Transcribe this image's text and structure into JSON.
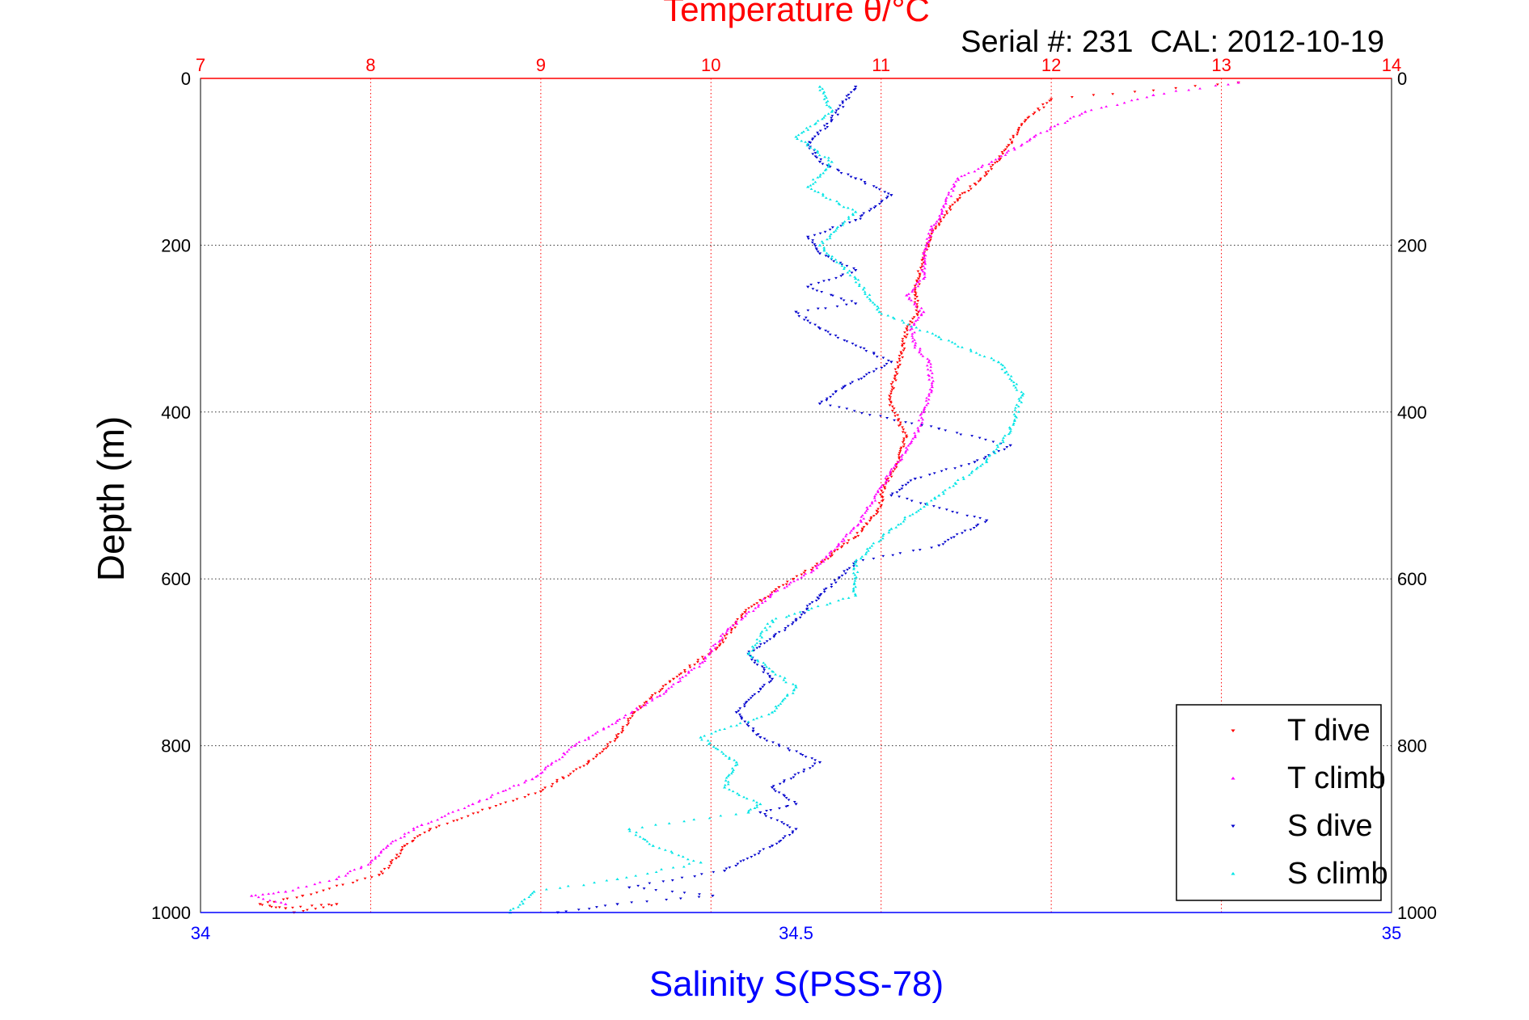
{
  "chart_data": {
    "type": "scatter",
    "title": "Temperature θ/°C",
    "subtitle": "Serial #: 231  CAL: 2012-10-19",
    "ylabel": "Depth (m)",
    "x_top_label": "Temperature θ/°C",
    "x_bottom_label": "Salinity S(PSS-78)",
    "ylim": [
      1000,
      0
    ],
    "temperature_lim": [
      7,
      14
    ],
    "salinity_lim": [
      34,
      35
    ],
    "grid": true,
    "legend_position": "bottom-right",
    "y_ticks": [
      0,
      200,
      400,
      600,
      800,
      1000
    ],
    "y_tick_labels": [
      "0",
      "200",
      "400",
      "600",
      "800",
      "1000"
    ],
    "temperature_ticks": [
      7,
      8,
      9,
      10,
      11,
      12,
      13,
      14
    ],
    "temperature_tick_labels": [
      "7",
      "8",
      "9",
      "10",
      "11",
      "12",
      "13",
      "14"
    ],
    "salinity_ticks": [
      34,
      34.5,
      35
    ],
    "salinity_tick_labels": [
      "34",
      "34.5",
      "35"
    ],
    "colors": {
      "temperature_axis": "#ff0000",
      "salinity_axis": "#0000ff",
      "t_dive": "#ff0000",
      "t_climb": "#ff00ff",
      "s_dive": "#0000cc",
      "s_climb": "#00e5e5",
      "grid": "#333333"
    },
    "series": [
      {
        "name": "T dive",
        "axis": "temperature",
        "marker": "triangle-down",
        "x": [
          13.1,
          12.0,
          11.85,
          11.75,
          11.62,
          11.45,
          11.32,
          11.25,
          11.22,
          11.2,
          11.22,
          11.15,
          11.12,
          11.08,
          11.05,
          11.1,
          11.15,
          11.1,
          11.02,
          10.98,
          10.85,
          10.65,
          10.4,
          10.2,
          10.05,
          9.78,
          9.55,
          9.45,
          9.28,
          9.0,
          8.7,
          8.35,
          8.2,
          8.15,
          8.05,
          7.6,
          7.35,
          7.5,
          7.8,
          7.55
        ],
        "y": [
          5,
          25,
          50,
          80,
          115,
          145,
          180,
          210,
          240,
          260,
          280,
          300,
          330,
          360,
          385,
          410,
          430,
          460,
          490,
          520,
          550,
          580,
          610,
          640,
          680,
          720,
          760,
          790,
          820,
          855,
          875,
          900,
          920,
          935,
          955,
          980,
          990,
          995,
          990,
          1000
        ]
      },
      {
        "name": "T climb",
        "axis": "temperature",
        "marker": "triangle-up",
        "x": [
          13.1,
          12.6,
          12.2,
          11.9,
          11.65,
          11.45,
          11.38,
          11.3,
          11.25,
          11.25,
          11.15,
          11.25,
          11.18,
          11.2,
          11.28,
          11.3,
          11.25,
          11.2,
          11.1,
          11.0,
          10.88,
          10.75,
          10.6,
          10.35,
          10.1,
          9.95,
          9.7,
          9.45,
          9.2,
          8.95,
          8.6,
          8.3,
          8.1,
          8.0,
          7.8,
          7.5,
          7.3,
          7.5
        ],
        "y": [
          5,
          20,
          40,
          70,
          100,
          120,
          150,
          180,
          210,
          240,
          260,
          280,
          300,
          320,
          340,
          370,
          400,
          430,
          460,
          490,
          530,
          560,
          590,
          620,
          660,
          700,
          740,
          770,
          800,
          840,
          870,
          895,
          920,
          940,
          960,
          975,
          980,
          990
        ]
      },
      {
        "name": "S dive",
        "axis": "salinity",
        "marker": "triangle-down",
        "x": [
          34.55,
          34.53,
          34.51,
          34.52,
          34.55,
          34.58,
          34.55,
          34.51,
          34.52,
          34.55,
          34.51,
          34.55,
          34.5,
          34.52,
          34.58,
          34.54,
          34.52,
          34.62,
          34.68,
          34.65,
          34.6,
          34.58,
          34.66,
          34.62,
          34.55,
          34.52,
          34.5,
          34.46,
          34.48,
          34.45,
          34.47,
          34.52,
          34.48,
          34.5,
          34.47,
          34.5,
          34.48,
          34.44,
          34.36,
          34.43,
          34.35,
          34.3
        ],
        "y": [
          10,
          50,
          80,
          100,
          120,
          140,
          170,
          190,
          210,
          230,
          250,
          270,
          280,
          300,
          340,
          370,
          390,
          420,
          440,
          460,
          480,
          500,
          530,
          560,
          580,
          620,
          650,
          690,
          720,
          760,
          790,
          820,
          850,
          870,
          880,
          900,
          920,
          950,
          970,
          980,
          990,
          1000
        ]
      },
      {
        "name": "S climb",
        "axis": "salinity",
        "marker": "triangle-up",
        "x": [
          34.52,
          34.53,
          34.5,
          34.53,
          34.51,
          34.55,
          34.52,
          34.55,
          34.57,
          34.62,
          34.67,
          34.69,
          34.68,
          34.66,
          34.62,
          34.58,
          34.55,
          34.55,
          34.48,
          34.46,
          34.5,
          34.48,
          34.42,
          34.45,
          34.44,
          34.47,
          34.46,
          34.36,
          34.38,
          34.42,
          34.35,
          34.28,
          34.26
        ],
        "y": [
          10,
          40,
          70,
          100,
          130,
          160,
          200,
          240,
          280,
          310,
          340,
          380,
          420,
          460,
          500,
          540,
          580,
          620,
          650,
          690,
          730,
          760,
          790,
          820,
          850,
          870,
          880,
          900,
          920,
          940,
          960,
          975,
          1000
        ]
      }
    ]
  }
}
